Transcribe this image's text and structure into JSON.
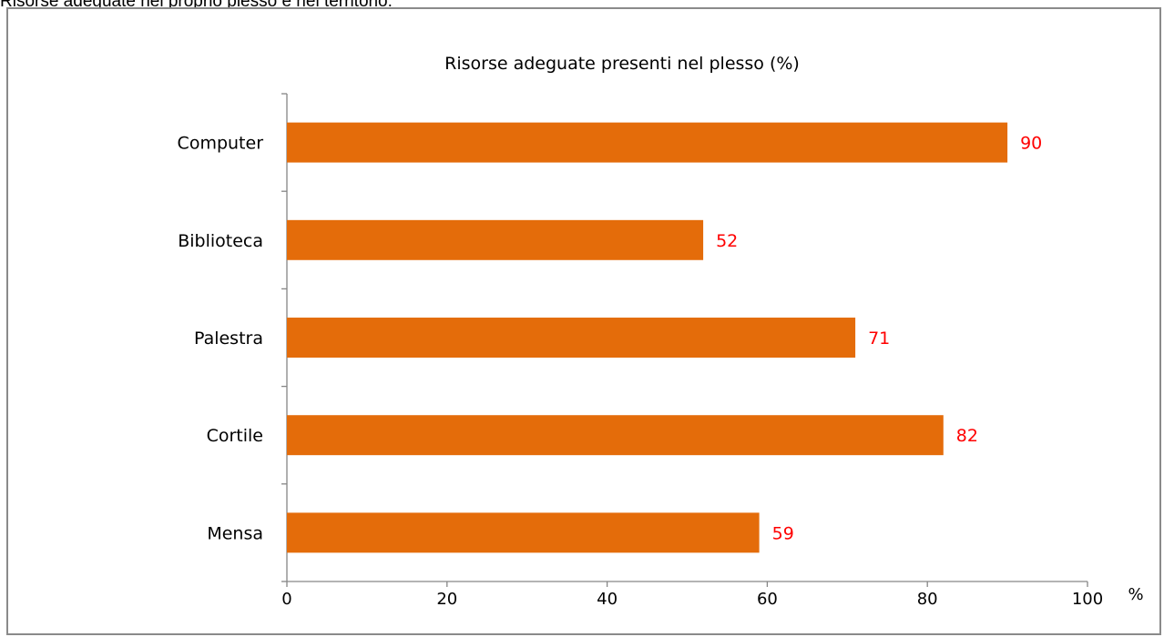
{
  "caption": "Risorse adeguate nel proprio plesso e nel territorio:",
  "chart_data": {
    "type": "bar",
    "orientation": "horizontal",
    "title": "Risorse adeguate presenti nel plesso  (%)",
    "categories": [
      "Computer",
      "Biblioteca",
      "Palestra",
      "Cortile",
      "Mensa"
    ],
    "values": [
      90,
      52,
      71,
      82,
      59
    ],
    "data_labels": [
      "90",
      "52",
      "71",
      "82",
      "59"
    ],
    "xticks": [
      0,
      20,
      40,
      60,
      80,
      100
    ],
    "xlim": [
      0,
      100
    ],
    "xunit": "%",
    "bar_color": "#e46c0a",
    "label_color": "#ff0000",
    "grid": false,
    "legend": "none"
  }
}
